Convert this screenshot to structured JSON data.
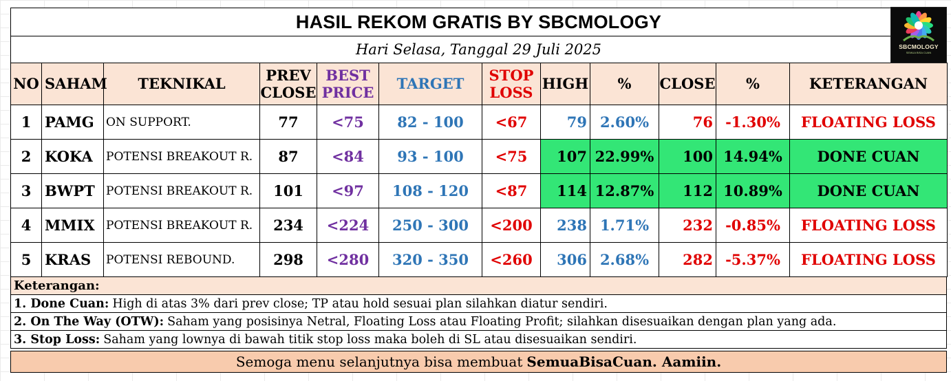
{
  "title": "HASIL REKOM GRATIS BY SBCMOLOGY",
  "date": "Hari Selasa, Tanggal 29 Juli 2025",
  "logo": {
    "name": "SBCMOLOGY",
    "subtitle": "SEMUA BISA CUAN",
    "bg_color": "#0b0b0b"
  },
  "columns": {
    "no": "NO",
    "saham": "SAHAM",
    "teknikal": "TEKNIKAL",
    "prev_close_1": "PREV",
    "prev_close_2": "CLOSE",
    "best_price_1": "BEST",
    "best_price_2": "PRICE",
    "target": "TARGET",
    "stop_loss_1": "STOP",
    "stop_loss_2": "LOSS",
    "high": "HIGH",
    "pct_high": "%",
    "close": "CLOSE",
    "pct_close": "%",
    "keterangan": "KETERANGAN"
  },
  "rows": [
    {
      "no": "1",
      "saham": "PAMG",
      "teknikal": "ON SUPPORT.",
      "prev_close": "77",
      "best_price": "<75",
      "target": "82 - 100",
      "stop_loss": "<67",
      "high": "79",
      "pct_high": "2.60%",
      "close": "76",
      "pct_close": "-1.30%",
      "keterangan": "FLOATING LOSS",
      "done": false
    },
    {
      "no": "2",
      "saham": "KOKA",
      "teknikal": "POTENSI BREAKOUT R.",
      "prev_close": "87",
      "best_price": "<84",
      "target": "93 - 100",
      "stop_loss": "<75",
      "high": "107",
      "pct_high": "22.99%",
      "close": "100",
      "pct_close": "14.94%",
      "keterangan": "DONE CUAN",
      "done": true
    },
    {
      "no": "3",
      "saham": "BWPT",
      "teknikal": "POTENSI BREAKOUT R.",
      "prev_close": "101",
      "best_price": "<97",
      "target": "108 - 120",
      "stop_loss": "<87",
      "high": "114",
      "pct_high": "12.87%",
      "close": "112",
      "pct_close": "10.89%",
      "keterangan": "DONE CUAN",
      "done": true
    },
    {
      "no": "4",
      "saham": "MMIX",
      "teknikal": "POTENSI BREAKOUT R.",
      "prev_close": "234",
      "best_price": "<224",
      "target": "250 - 300",
      "stop_loss": "<200",
      "high": "238",
      "pct_high": "1.71%",
      "close": "232",
      "pct_close": "-0.85%",
      "keterangan": "FLOATING LOSS",
      "done": false
    },
    {
      "no": "5",
      "saham": "KRAS",
      "teknikal": "POTENSI REBOUND.",
      "prev_close": "298",
      "best_price": "<280",
      "target": "320 - 350",
      "stop_loss": "<260",
      "high": "306",
      "pct_high": "2.68%",
      "close": "282",
      "pct_close": "-5.37%",
      "keterangan": "FLOATING LOSS",
      "done": false
    }
  ],
  "notes": {
    "heading": "Keterangan:",
    "items": [
      {
        "label": "1. Done Cuan:",
        "text": "High di atas 3% dari prev close; TP atau hold sesuai plan silahkan diatur sendiri."
      },
      {
        "label": "2. On The Way (OTW):",
        "text": "Saham yang posisinya Netral, Floating Loss atau Floating Profit; silahkan disesuaikan dengan plan yang ada."
      },
      {
        "label": "3. Stop Loss:",
        "text": "Saham yang lownya di bawah titik stop loss maka boleh di SL atau disesuaikan sendiri."
      }
    ]
  },
  "footer": {
    "text": "Semoga menu selanjutnya bisa membuat",
    "bold": "SemuaBisaCuan. Aamiin."
  },
  "colors": {
    "header_bg": "#fbe4d5",
    "purple": "#7030a0",
    "blue": "#2e75b6",
    "red": "#e00000",
    "done_green": "#33e676",
    "footer_bg": "#f8cbad"
  }
}
